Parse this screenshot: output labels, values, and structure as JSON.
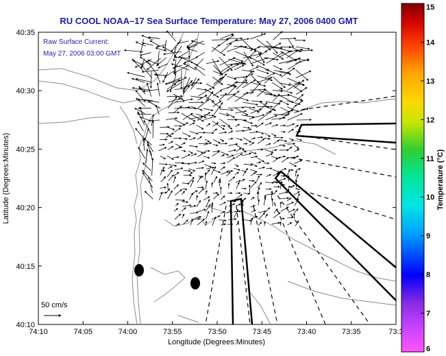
{
  "title": "RU COOL  NOAA–17  Sea Surface Temperature:  May 27, 2006 0400 GMT",
  "annotation": {
    "line1": "Raw Surface Current:",
    "line2": "May 27, 2006 03:00 GMT"
  },
  "scale_label": "50 cm/s",
  "x_axis": {
    "label": "Longitude (Degrees:Minutes)",
    "ticks": [
      "74:10",
      "74:05",
      "74:00",
      "73:55",
      "73:50",
      "73:45",
      "73:40",
      "73:35",
      "73:3"
    ]
  },
  "y_axis": {
    "label": "Latitude (Degrees:Minutes)",
    "ticks": [
      "40:35",
      "40:30",
      "40:25",
      "40:20",
      "40:15",
      "40:10"
    ]
  },
  "colorbar": {
    "label": "Temperature (°C)",
    "ticks": [
      "15",
      "14",
      "13",
      "12",
      "11",
      "10",
      "9",
      "8",
      "7",
      "6"
    ],
    "range": [
      6,
      15
    ],
    "colors": [
      "#ff55ff",
      "#8a2be2",
      "#0000ff",
      "#00c8ff",
      "#00e6b4",
      "#32cd32",
      "#e6e600",
      "#ffa500",
      "#ff3300",
      "#880000"
    ]
  },
  "map_colors": {
    "land_outline": "#888888",
    "arrows": "#000000",
    "boundaries": "#000000"
  }
}
